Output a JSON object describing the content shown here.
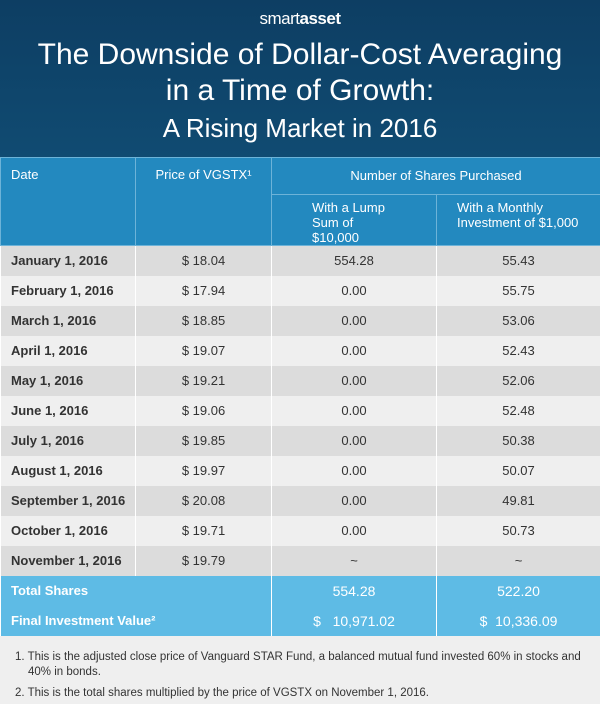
{
  "brand": {
    "logo_light": "smart",
    "logo_bold": "asset",
    "colors": {
      "header": "#104b72",
      "table_header": "#2389bf",
      "totals": "#5ebbe5"
    }
  },
  "title": {
    "line1": "The Downside of Dollar-Cost Averaging",
    "line2": "in a Time of Growth:",
    "subtitle": "A Rising Market in 2016"
  },
  "table": {
    "headers": {
      "date": "Date",
      "price": "Price of VGSTX¹",
      "group": "Number of Shares Purchased",
      "lump": "With a Lump Sum of $10,000",
      "monthly": "With a Monthly Investment of $1,000"
    },
    "rows": [
      {
        "date": "January 1, 2016",
        "price": "$ 18.04",
        "lump": "554.28",
        "monthly": "55.43"
      },
      {
        "date": "February 1, 2016",
        "price": "$ 17.94",
        "lump": "0.00",
        "monthly": "55.75"
      },
      {
        "date": "March 1, 2016",
        "price": "$ 18.85",
        "lump": "0.00",
        "monthly": "53.06"
      },
      {
        "date": "April 1, 2016",
        "price": "$ 19.07",
        "lump": "0.00",
        "monthly": "52.43"
      },
      {
        "date": "May 1, 2016",
        "price": "$ 19.21",
        "lump": "0.00",
        "monthly": "52.06"
      },
      {
        "date": "June 1, 2016",
        "price": "$ 19.06",
        "lump": "0.00",
        "monthly": "52.48"
      },
      {
        "date": "July 1, 2016",
        "price": "$ 19.85",
        "lump": "0.00",
        "monthly": "50.38"
      },
      {
        "date": "August 1, 2016",
        "price": "$ 19.97",
        "lump": "0.00",
        "monthly": "50.07"
      },
      {
        "date": "September 1, 2016",
        "price": "$ 20.08",
        "lump": "0.00",
        "monthly": "49.81"
      },
      {
        "date": "October 1, 2016",
        "price": "$ 19.71",
        "lump": "0.00",
        "monthly": "50.73"
      },
      {
        "date": "November 1, 2016",
        "price": "$ 19.79",
        "lump": "~",
        "monthly": "~"
      }
    ],
    "totals": [
      {
        "label": "Total Shares",
        "lump": "554.28",
        "monthly": "522.20"
      },
      {
        "label": "Final Investment Value²",
        "lump": "$   10,971.02",
        "monthly": "$  10,336.09"
      }
    ]
  },
  "notes": [
    "1. This is the adjusted close price of Vanguard STAR Fund, a balanced mutual fund invested 60% in stocks and 40% in bonds.",
    "2. This is the total shares multiplied by the price of VGSTX on November 1, 2016."
  ]
}
